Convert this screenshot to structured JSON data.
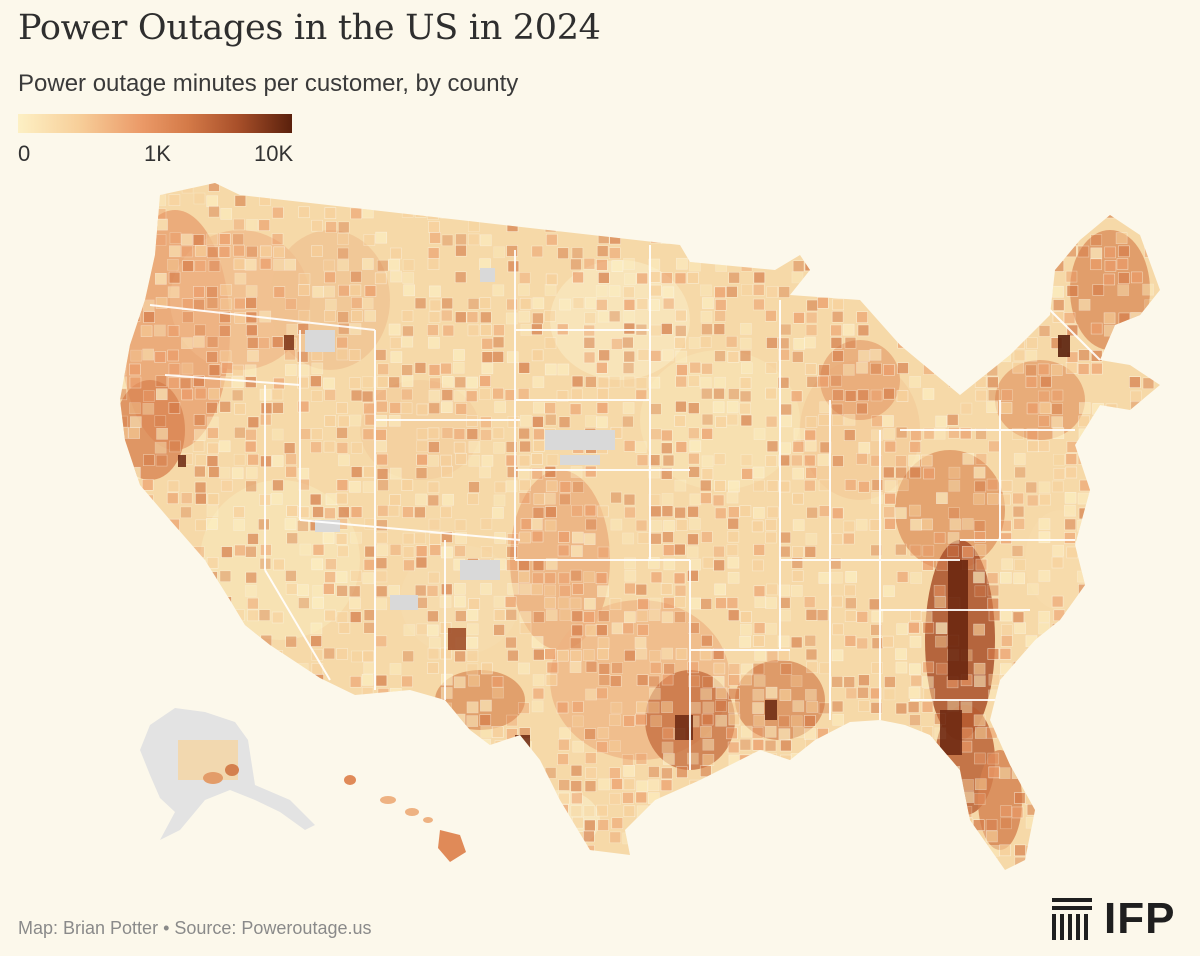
{
  "title": "Power Outages in the US in 2024",
  "subtitle": "Power outage minutes per customer, by county",
  "legend": {
    "ticks": [
      "0",
      "1K",
      "10K"
    ],
    "scale": "log",
    "colors": [
      "#fdf0c4",
      "#f7cf9a",
      "#eb9a68",
      "#d47a48",
      "#a9502a",
      "#5a200c"
    ],
    "no_data_color": "#d9d9d9"
  },
  "footer": "Map: Brian Potter • Source: Poweroutage.us",
  "logo": "IFP"
}
